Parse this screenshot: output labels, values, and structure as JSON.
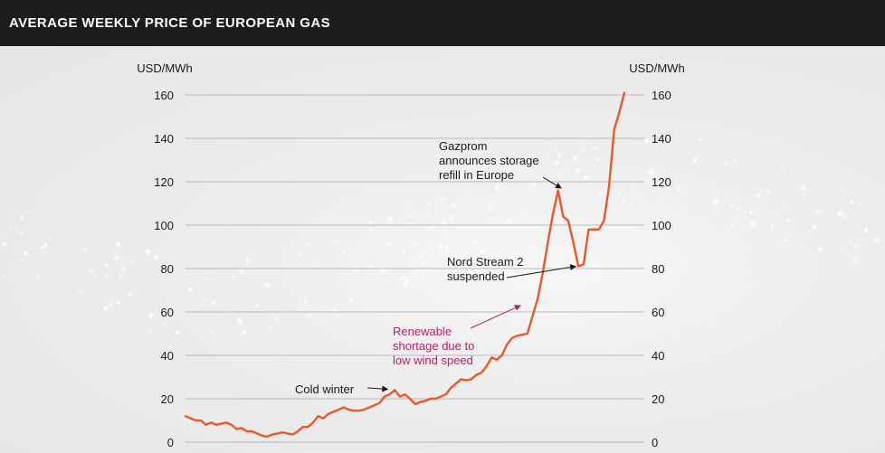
{
  "title": "AVERAGE WEEKLY PRICE OF EUROPEAN GAS",
  "chart_data": {
    "type": "line",
    "title": "AVERAGE WEEKLY PRICE OF EUROPEAN GAS",
    "ylabel_left": "USD/MWh",
    "ylabel_right": "USD/MWh",
    "ylim": [
      0,
      160
    ],
    "yticks": [
      0,
      20,
      40,
      60,
      80,
      100,
      120,
      140,
      160
    ],
    "grid": "horizontal",
    "line_color": "#e8592a",
    "series": [
      {
        "x": [
          0,
          1,
          2,
          3,
          4,
          5,
          6,
          7,
          8,
          9,
          10,
          11,
          12,
          13,
          14,
          15,
          16,
          17,
          18,
          19,
          20,
          21,
          22,
          23,
          24,
          25,
          26,
          27,
          28,
          29,
          30,
          31,
          32,
          33,
          34,
          35,
          36,
          37,
          38,
          39,
          40,
          41,
          42,
          43,
          44,
          45,
          46,
          47,
          48,
          49,
          50,
          51,
          52,
          53,
          54,
          55,
          56,
          57,
          58,
          59,
          60,
          61,
          62,
          63,
          64,
          65,
          66,
          67,
          68,
          69,
          70,
          71,
          72,
          73,
          74,
          75,
          76,
          77,
          78,
          79,
          80,
          81,
          82,
          83,
          84,
          85,
          86,
          87,
          88,
          89,
          90,
          91,
          92,
          93,
          94,
          95,
          96,
          97,
          98,
          99,
          100,
          101,
          102,
          103,
          104
        ],
        "values": [
          12,
          11,
          10,
          10,
          8,
          9,
          8,
          8.5,
          9,
          8,
          6,
          6.5,
          5,
          5,
          4,
          3,
          2.5,
          3.5,
          4,
          4.5,
          4,
          3.5,
          5,
          7,
          7,
          9,
          12,
          11,
          13,
          14,
          15,
          16,
          15,
          14.5,
          14.5,
          15,
          16,
          17,
          18,
          21,
          22,
          24,
          21,
          22,
          20,
          17.5,
          18.5,
          19,
          20,
          20,
          21,
          22,
          25,
          27,
          29,
          28.5,
          29,
          31,
          32,
          35,
          39,
          38,
          40,
          45,
          48,
          49,
          49.5,
          50,
          58,
          66,
          78,
          92,
          105,
          116,
          104,
          102,
          92,
          81,
          82,
          98,
          98,
          98,
          102,
          118,
          144,
          152,
          161,
          null,
          null,
          null,
          null,
          null,
          null,
          null,
          null,
          null,
          null,
          null,
          null,
          null,
          null,
          null,
          null,
          null,
          null
        ]
      }
    ],
    "annotations": [
      {
        "text": "Cold winter",
        "point_x": 40,
        "point_y": 24,
        "color": "#1a1a1a"
      },
      {
        "text_lines": [
          "Renewable",
          "shortage due to",
          "low wind speed"
        ],
        "point_x": 66,
        "point_y": 63,
        "color": "#b0246a"
      },
      {
        "text_lines": [
          "Nord Stream 2",
          "suspended"
        ],
        "point_x": 81,
        "point_y": 82,
        "color": "#1a1a1a"
      },
      {
        "text_lines": [
          "Gazprom",
          "announces storage",
          "refill in Europe"
        ],
        "point_x": 74,
        "point_y": 117,
        "color": "#1a1a1a"
      }
    ]
  }
}
